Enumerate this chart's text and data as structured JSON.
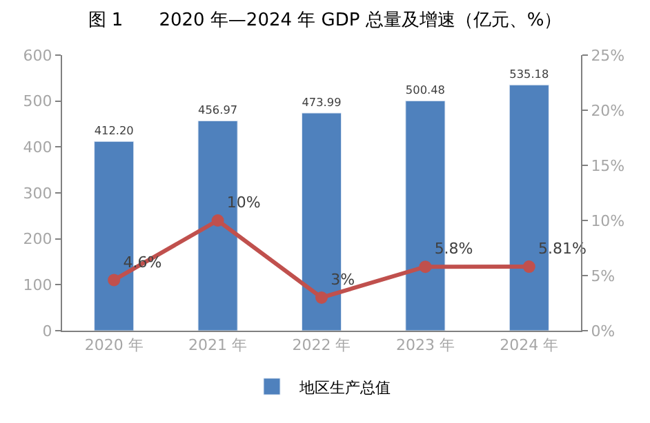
{
  "chart_data": {
    "type": "bar",
    "title": "图 1　　2020 年—2024 年 GDP 总量及增速（亿元、%）",
    "categories": [
      "2020 年",
      "2021 年",
      "2022 年",
      "2023 年",
      "2024 年"
    ],
    "series": [
      {
        "name": "地区生产总值",
        "color": "#4f81bd",
        "values": [
          412.2,
          456.97,
          473.99,
          500.48,
          535.18
        ],
        "value_labels": [
          "412.20",
          "456.97",
          "473.99",
          "500.48",
          "535.18"
        ]
      },
      {
        "type": "line",
        "axis": "y2",
        "color": "#c0504d",
        "marker": "circle",
        "line_style": "solid",
        "values": [
          4.6,
          10,
          3,
          5.8,
          5.81
        ],
        "value_labels": [
          "4.6%",
          "10%",
          "3%",
          "5.8%",
          "5.81%"
        ]
      }
    ],
    "ylim": [
      0,
      600
    ],
    "yticks": [
      0,
      100,
      200,
      300,
      400,
      500,
      600
    ],
    "y2lim": [
      0,
      25
    ],
    "y2ticks": [
      {
        "value": 0,
        "label": "0%"
      },
      {
        "value": 5,
        "label": "5%"
      },
      {
        "value": 10,
        "label": "10%"
      },
      {
        "value": 15,
        "label": "15%"
      },
      {
        "value": 20,
        "label": "20%"
      },
      {
        "value": 25,
        "label": "25%"
      }
    ],
    "legend": "bottom"
  }
}
